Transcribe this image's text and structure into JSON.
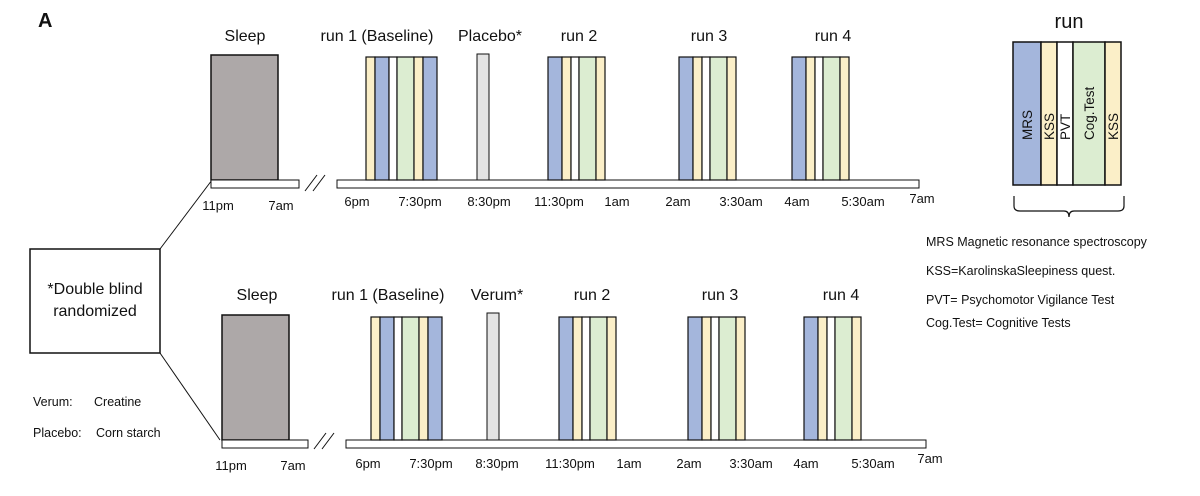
{
  "panel_label": "A",
  "colors": {
    "sleep": "#ada8a8",
    "mrs": "#a4b6dc",
    "kss": "#fbefc8",
    "pvt": "#ffffff",
    "cog": "#dcedd1",
    "pill": "#e4e4e4",
    "stroke": "#111111"
  },
  "box": {
    "line1": "*Double blind",
    "line2": "randomized"
  },
  "substances": [
    {
      "name": "Verum:",
      "value": "Creatine"
    },
    {
      "name": "Placebo:",
      "value": "Corn starch"
    }
  ],
  "arms": [
    {
      "sleep_label": "Sleep",
      "run_labels": [
        "run 1 (Baseline)",
        "Placebo*",
        "run 2",
        "run 3",
        "run 4"
      ],
      "sleep_times": [
        "11pm",
        "7am"
      ],
      "ticks": [
        "6pm",
        "7:30pm",
        "8:30pm",
        "11:30pm",
        "1am",
        "2am",
        "3:30am",
        "4am",
        "5:30am",
        "7am"
      ],
      "run_patterns": [
        [
          "kss",
          "mrs",
          "pvt",
          "cog",
          "kss",
          "mrs"
        ],
        [
          "mrs",
          "kss",
          "pvt",
          "cog",
          "kss"
        ],
        [
          "mrs",
          "kss",
          "pvt",
          "cog",
          "kss"
        ],
        [
          "mrs",
          "kss",
          "pvt",
          "cog",
          "kss"
        ]
      ]
    },
    {
      "sleep_label": "Sleep",
      "run_labels": [
        "run 1 (Baseline)",
        "Verum*",
        "run 2",
        "run 3",
        "run 4"
      ],
      "sleep_times": [
        "11pm",
        "7am"
      ],
      "ticks": [
        "6pm",
        "7:30pm",
        "8:30pm",
        "11:30pm",
        "1am",
        "2am",
        "3:30am",
        "4am",
        "5:30am",
        "7am"
      ],
      "run_patterns": [
        [
          "kss",
          "mrs",
          "pvt",
          "cog",
          "kss",
          "mrs"
        ],
        [
          "mrs",
          "kss",
          "pvt",
          "cog",
          "kss"
        ],
        [
          "mrs",
          "kss",
          "pvt",
          "cog",
          "kss"
        ],
        [
          "mrs",
          "kss",
          "pvt",
          "cog",
          "kss"
        ]
      ]
    }
  ],
  "legend_run": {
    "title": "run",
    "segments": [
      {
        "type": "mrs",
        "label": "MRS"
      },
      {
        "type": "kss",
        "label": "KSS"
      },
      {
        "type": "pvt",
        "label": "PVT"
      },
      {
        "type": "cog",
        "label": "Cog.Test"
      },
      {
        "type": "kss",
        "label": "KSS"
      }
    ]
  },
  "abbreviations": [
    "MRS Magnetic resonance spectroscopy",
    "KSS=KarolinskaSleepiness quest.",
    "PVT= Psychomotor Vigilance Test",
    "Cog.Test= Cognitive Tests"
  ]
}
